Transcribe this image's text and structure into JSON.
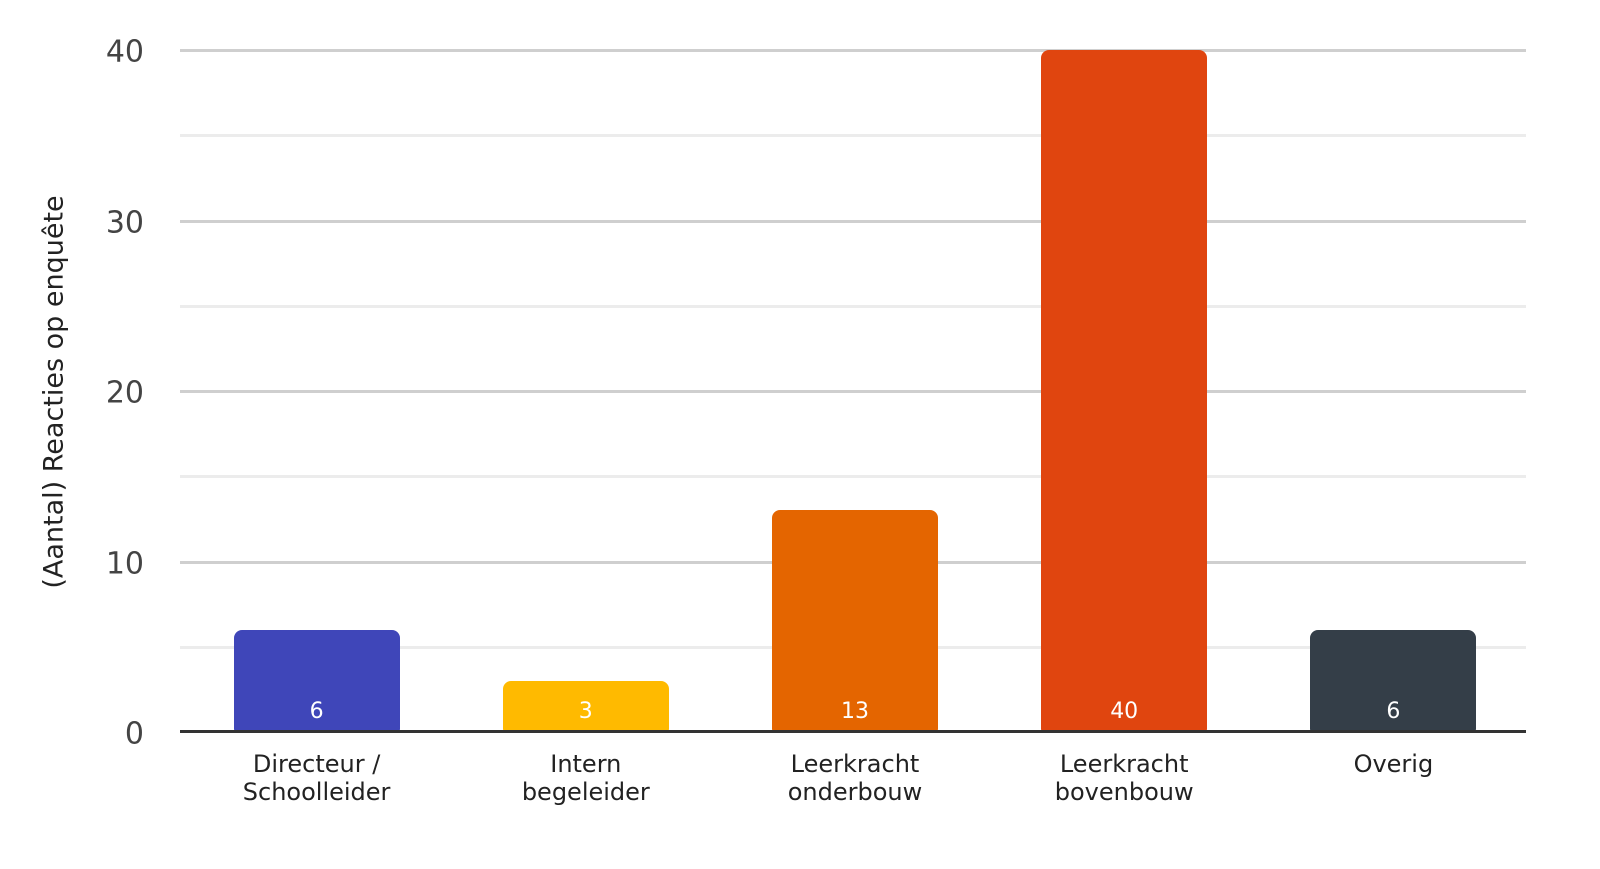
{
  "chart_data": {
    "type": "bar",
    "title": "",
    "xlabel": "",
    "ylabel": "(Aantal) Reacties op enquête",
    "categories": [
      "Directeur / Schoolleider",
      "Intern begeleider",
      "Leerkracht onderbouw",
      "Leerkracht bovenbouw",
      "Overig"
    ],
    "category_lines": [
      [
        "Directeur /",
        "Schoolleider"
      ],
      [
        "Intern",
        "begeleider"
      ],
      [
        "Leerkracht",
        "onderbouw"
      ],
      [
        "Leerkracht",
        "bovenbouw"
      ],
      [
        "Overig"
      ]
    ],
    "values": [
      6,
      3,
      13,
      40,
      6
    ],
    "data_labels": [
      "6",
      "3",
      "13",
      "40",
      "6"
    ],
    "colors": [
      "#3f46b9",
      "#ffba00",
      "#e46500",
      "#e0450f",
      "#343e48"
    ],
    "ylim": [
      0,
      40
    ],
    "yticks": [
      0,
      10,
      20,
      30,
      40
    ],
    "ytick_labels": [
      "0",
      "10",
      "20",
      "30",
      "40"
    ],
    "minor_gridlines": [
      5,
      15,
      25,
      35
    ],
    "grid": true,
    "legend": null
  }
}
